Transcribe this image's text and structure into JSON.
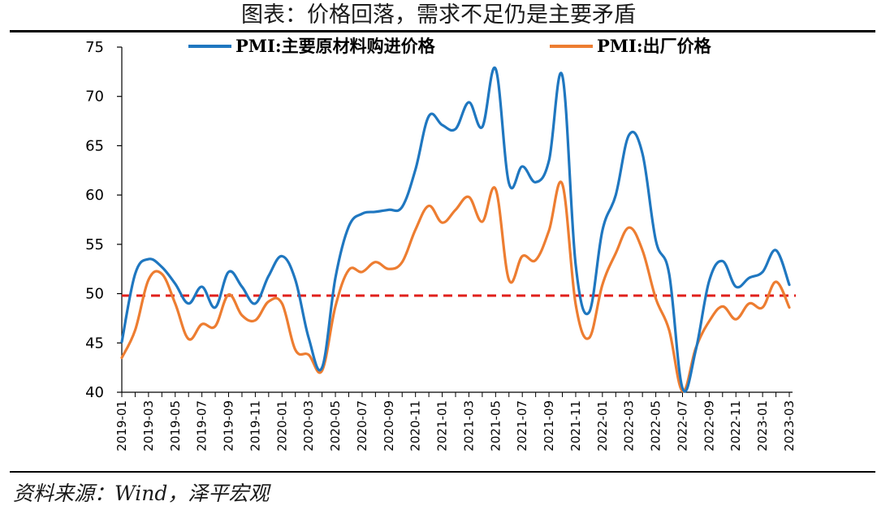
{
  "title": "图表：价格回落，需求不足仍是主要矛盾",
  "source": "资料来源：Wind，泽平宏观",
  "colors": {
    "series1": "#1F77C0",
    "series2": "#ED7D31",
    "refline": "#E0201B"
  },
  "chart_data": {
    "type": "line",
    "title": "图表：价格回落，需求不足仍是主要矛盾",
    "xlabel": "",
    "ylabel": "",
    "ylim": [
      40,
      75
    ],
    "yticks": [
      40,
      45,
      50,
      55,
      60,
      65,
      70,
      75
    ],
    "legend_position": "top",
    "grid": false,
    "reference_line": {
      "y": 49.8,
      "style": "dashed"
    },
    "x": [
      "2019-01",
      "2019-02",
      "2019-03",
      "2019-04",
      "2019-05",
      "2019-06",
      "2019-07",
      "2019-08",
      "2019-09",
      "2019-10",
      "2019-11",
      "2019-12",
      "2020-01",
      "2020-02",
      "2020-03",
      "2020-04",
      "2020-05",
      "2020-06",
      "2020-07",
      "2020-08",
      "2020-09",
      "2020-10",
      "2020-11",
      "2020-12",
      "2021-01",
      "2021-02",
      "2021-03",
      "2021-04",
      "2021-05",
      "2021-06",
      "2021-07",
      "2021-08",
      "2021-09",
      "2021-10",
      "2021-11",
      "2021-12",
      "2022-01",
      "2022-02",
      "2022-03",
      "2022-04",
      "2022-05",
      "2022-06",
      "2022-07",
      "2022-08",
      "2022-09",
      "2022-10",
      "2022-11",
      "2022-12",
      "2023-01",
      "2023-02",
      "2023-03"
    ],
    "xtick_labels": [
      "2019-01",
      "2019-03",
      "2019-05",
      "2019-07",
      "2019-09",
      "2019-11",
      "2020-01",
      "2020-03",
      "2020-05",
      "2020-07",
      "2020-09",
      "2020-11",
      "2021-01",
      "2021-03",
      "2021-05",
      "2021-07",
      "2021-09",
      "2021-11",
      "2022-01",
      "2022-03",
      "2022-05",
      "2022-07",
      "2022-09",
      "2022-11",
      "2023-01",
      "2023-03"
    ],
    "series": [
      {
        "name": "PMI:主要原材料购进价格",
        "values": [
          45.1,
          52.0,
          53.5,
          52.7,
          51.0,
          49.0,
          50.7,
          48.6,
          52.2,
          50.7,
          49.0,
          51.8,
          53.8,
          51.4,
          45.5,
          42.5,
          51.6,
          56.8,
          58.1,
          58.3,
          58.5,
          58.8,
          62.6,
          68.0,
          67.1,
          66.7,
          69.4,
          66.9,
          72.8,
          61.2,
          62.9,
          61.3,
          63.5,
          72.1,
          52.9,
          48.1,
          56.4,
          60.0,
          66.1,
          64.2,
          55.4,
          52.0,
          40.4,
          44.3,
          51.3,
          53.3,
          50.7,
          51.6,
          52.2,
          54.4,
          50.9
        ]
      },
      {
        "name": "PMI:出厂价格",
        "values": [
          43.5,
          46.3,
          51.4,
          52.0,
          49.0,
          45.4,
          46.9,
          46.7,
          49.9,
          47.8,
          47.3,
          49.2,
          49.0,
          44.3,
          43.8,
          42.2,
          48.7,
          52.4,
          52.2,
          53.2,
          52.5,
          53.2,
          56.5,
          58.9,
          57.2,
          58.5,
          59.8,
          57.3,
          60.6,
          51.4,
          53.8,
          53.4,
          56.4,
          61.1,
          48.9,
          45.5,
          50.9,
          54.1,
          56.7,
          54.4,
          49.5,
          46.3,
          40.1,
          44.5,
          47.2,
          48.7,
          47.4,
          49.0,
          48.6,
          51.2,
          48.6
        ]
      }
    ]
  }
}
